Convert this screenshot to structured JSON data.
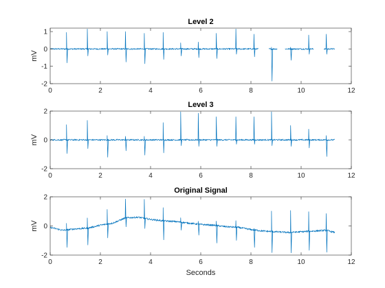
{
  "chart_data": [
    {
      "type": "line",
      "title": "Level 2",
      "xlabel": "",
      "ylabel": "mV",
      "xlim": [
        0,
        12
      ],
      "ylim": [
        -2,
        1.2
      ],
      "xticks": [
        0,
        2,
        4,
        6,
        8,
        10,
        12
      ],
      "yticks": [
        -2,
        -1,
        0,
        1
      ],
      "color": "#0072bd",
      "baseline": 0,
      "noise": 0.04,
      "x_end": 11.35,
      "beats": [
        {
          "t": 0.65,
          "hi": 0.95,
          "lo": -0.8
        },
        {
          "t": 1.48,
          "hi": 1.15,
          "lo": -0.4
        },
        {
          "t": 2.27,
          "hi": 1.0,
          "lo": -0.35
        },
        {
          "t": 3.0,
          "hi": 1.0,
          "lo": -0.75
        },
        {
          "t": 3.75,
          "hi": 0.9,
          "lo": -0.85
        },
        {
          "t": 4.5,
          "hi": 0.95,
          "lo": -0.6
        },
        {
          "t": 5.2,
          "hi": 0.35,
          "lo": -0.4
        },
        {
          "t": 5.9,
          "hi": 0.4,
          "lo": -0.5
        },
        {
          "t": 6.62,
          "hi": 0.9,
          "lo": -0.55
        },
        {
          "t": 7.4,
          "hi": 1.15,
          "lo": -0.3
        },
        {
          "t": 8.12,
          "hi": 0.85,
          "lo": -0.45
        },
        {
          "t": 8.82,
          "hi": 0.1,
          "lo": -1.85
        },
        {
          "t": 9.58,
          "hi": 0.1,
          "lo": -0.65
        },
        {
          "t": 10.3,
          "hi": 0.8,
          "lo": -0.3
        },
        {
          "t": 11.0,
          "hi": 0.85,
          "lo": -0.3
        }
      ],
      "gaps": [
        [
          8.3,
          8.7
        ],
        [
          9.05,
          9.35
        ],
        [
          10.5,
          10.9
        ]
      ]
    },
    {
      "type": "line",
      "title": "Level 3",
      "xlabel": "",
      "ylabel": "mV",
      "xlim": [
        0,
        12
      ],
      "ylim": [
        -2,
        2
      ],
      "xticks": [
        0,
        2,
        4,
        6,
        8,
        10,
        12
      ],
      "yticks": [
        -2,
        0,
        2
      ],
      "color": "#0072bd",
      "baseline": 0,
      "noise": 0.05,
      "x_end": 11.35,
      "beats": [
        {
          "t": 0.65,
          "hi": 1.05,
          "lo": -0.95
        },
        {
          "t": 1.48,
          "hi": 1.35,
          "lo": -0.6
        },
        {
          "t": 2.27,
          "hi": 0.3,
          "lo": -1.2
        },
        {
          "t": 3.0,
          "hi": 0.25,
          "lo": -0.75
        },
        {
          "t": 3.75,
          "hi": 0.25,
          "lo": -1.05
        },
        {
          "t": 4.5,
          "hi": 1.2,
          "lo": -0.9
        },
        {
          "t": 5.2,
          "hi": 1.95,
          "lo": -0.4
        },
        {
          "t": 5.9,
          "hi": 1.85,
          "lo": -0.45
        },
        {
          "t": 6.62,
          "hi": 1.6,
          "lo": -0.45
        },
        {
          "t": 7.4,
          "hi": 1.6,
          "lo": -0.3
        },
        {
          "t": 8.12,
          "hi": 1.6,
          "lo": -0.3
        },
        {
          "t": 8.82,
          "hi": 1.95,
          "lo": -0.4
        },
        {
          "t": 9.58,
          "hi": 1.0,
          "lo": -0.45
        },
        {
          "t": 10.3,
          "hi": 0.75,
          "lo": -0.55
        },
        {
          "t": 11.0,
          "hi": 0.3,
          "lo": -1.15
        }
      ],
      "gaps": []
    },
    {
      "type": "line",
      "title": "Original Signal",
      "xlabel": "Seconds",
      "ylabel": "mV",
      "xlim": [
        0,
        12
      ],
      "ylim": [
        -2,
        2
      ],
      "xticks": [
        0,
        2,
        4,
        6,
        8,
        10,
        12
      ],
      "yticks": [
        -2,
        0,
        2
      ],
      "color": "#0072bd",
      "noise": 0.06,
      "x_end": 11.35,
      "baseline_points": [
        [
          0,
          -0.1
        ],
        [
          0.5,
          -0.3
        ],
        [
          1.0,
          -0.2
        ],
        [
          1.5,
          -0.15
        ],
        [
          2.0,
          0.05
        ],
        [
          2.5,
          0.2
        ],
        [
          3.0,
          0.55
        ],
        [
          3.5,
          0.6
        ],
        [
          4.0,
          0.45
        ],
        [
          4.5,
          0.35
        ],
        [
          5.0,
          0.3
        ],
        [
          5.5,
          0.2
        ],
        [
          6.0,
          0.1
        ],
        [
          6.5,
          0.05
        ],
        [
          7.0,
          -0.05
        ],
        [
          7.5,
          -0.1
        ],
        [
          8.0,
          -0.25
        ],
        [
          8.5,
          -0.35
        ],
        [
          9.0,
          -0.4
        ],
        [
          9.5,
          -0.45
        ],
        [
          10.0,
          -0.4
        ],
        [
          10.5,
          -0.35
        ],
        [
          11.0,
          -0.3
        ],
        [
          11.35,
          -0.45
        ]
      ],
      "beats": [
        {
          "t": 0.65,
          "hi": 0.45,
          "lo": -1.2
        },
        {
          "t": 1.48,
          "hi": 0.7,
          "lo": -1.15
        },
        {
          "t": 2.27,
          "hi": 1.0,
          "lo": -0.95
        },
        {
          "t": 3.0,
          "hi": 1.3,
          "lo": -0.6
        },
        {
          "t": 3.75,
          "hi": 1.3,
          "lo": -0.7
        },
        {
          "t": 4.5,
          "hi": 0.9,
          "lo": -1.3
        },
        {
          "t": 5.2,
          "hi": 0.3,
          "lo": -0.55
        },
        {
          "t": 5.9,
          "hi": 0.2,
          "lo": -0.75
        },
        {
          "t": 6.62,
          "hi": 0.3,
          "lo": -1.2
        },
        {
          "t": 7.4,
          "hi": 0.45,
          "lo": -0.9
        },
        {
          "t": 8.12,
          "hi": 0.1,
          "lo": -1.2
        },
        {
          "t": 8.82,
          "hi": 1.4,
          "lo": -1.45
        },
        {
          "t": 9.58,
          "hi": 1.5,
          "lo": -1.4
        },
        {
          "t": 10.3,
          "hi": 1.35,
          "lo": -1.3
        },
        {
          "t": 11.0,
          "hi": 1.15,
          "lo": -1.5
        }
      ],
      "gaps": []
    }
  ]
}
